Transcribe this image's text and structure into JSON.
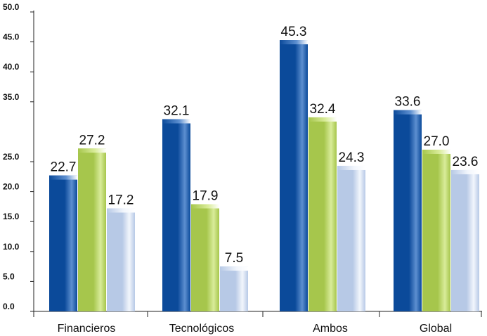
{
  "chart_data": {
    "type": "bar",
    "title": "",
    "xlabel": "",
    "ylabel": "",
    "ylim": [
      0,
      50
    ],
    "yticks": [
      "0.0",
      "5.0",
      "10.0",
      "15.0",
      "20.0",
      "25.0",
      "35.0",
      "40.0",
      "45.0",
      "50.0"
    ],
    "ytick_values": [
      0,
      5,
      10,
      15,
      20,
      25,
      35,
      40,
      45,
      50
    ],
    "categories": [
      "Financieros",
      "Tecnológicos",
      "Ambos",
      "Global"
    ],
    "series": [
      {
        "values": [
          22.7,
          32.1,
          45.3,
          33.6
        ],
        "value_labels": [
          "22.7",
          "32.1",
          "45.3",
          "33.6"
        ],
        "color": "#0b4a9a",
        "highlight": "#5d8fd0"
      },
      {
        "values": [
          27.2,
          17.9,
          32.4,
          27.0
        ],
        "value_labels": [
          "27.2",
          "17.9",
          "32.4",
          "27.0"
        ],
        "color": "#a6c64c",
        "highlight": "#d9ec9a"
      },
      {
        "values": [
          17.2,
          7.5,
          24.3,
          23.6
        ],
        "value_labels": [
          "17.2",
          "7.5",
          "24.3",
          "23.6"
        ],
        "color": "#b7c9e6",
        "highlight": "#f2f6fc"
      }
    ],
    "grid": false,
    "legend": "none"
  }
}
